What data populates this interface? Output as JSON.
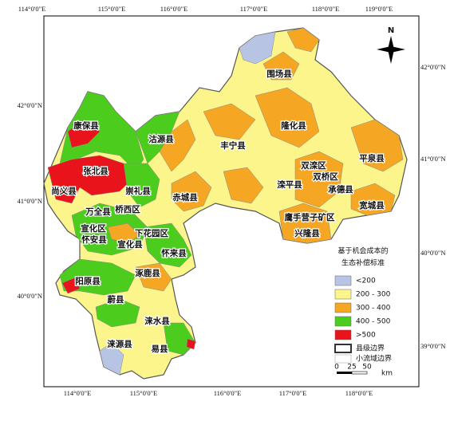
{
  "graticule": {
    "top": [
      "114°0'0\"E",
      "115°0'0\"E",
      "116°0'0\"E",
      "117°0'0\"E",
      "118°0'0\"E",
      "119°0'0\"E"
    ],
    "bottom": [
      "114°0'0\"E",
      "115°0'0\"E",
      "116°0'0\"E",
      "117°0'0\"E",
      "118°0'0\"E"
    ],
    "left": [
      "42°0'0\"N",
      "41°0'0\"N",
      "40°0'0\"N"
    ],
    "right": [
      "42°0'0\"N",
      "41°0'0\"N",
      "40°0'0\"N",
      "39°0'0\"N"
    ]
  },
  "counties": [
    "康保县",
    "张北县",
    "尚义县",
    "沽源县",
    "崇礼县",
    "赤城县",
    "丰宁县",
    "围场县",
    "隆化县",
    "双滦区",
    "双桥区",
    "滦平县",
    "承德县",
    "平泉县",
    "宽城县",
    "鹰手营子矿区",
    "兴隆县",
    "万全县",
    "桥西区",
    "宣化区",
    "下花园区",
    "怀安县",
    "宣化县",
    "怀来县",
    "涿鹿县",
    "阳原县",
    "蔚县",
    "涞水县",
    "涞源县",
    "易县"
  ],
  "legend": {
    "title_lines": [
      "基于机会成本的",
      "生态补偿标准"
    ],
    "items": [
      {
        "label": "<200",
        "color": "#b7c4e4"
      },
      {
        "label": "200 - 300",
        "color": "#fbf58c"
      },
      {
        "label": "300 - 400",
        "color": "#f5a623"
      },
      {
        "label": "400 - 500",
        "color": "#4ccd1e"
      },
      {
        "label": ">500",
        "color": "#e8131b"
      }
    ],
    "boundaries": [
      "县级边界",
      "小流域边界"
    ]
  },
  "scale": {
    "ticks": [
      "0",
      "25",
      "50"
    ],
    "unit": "km"
  },
  "north": "N"
}
